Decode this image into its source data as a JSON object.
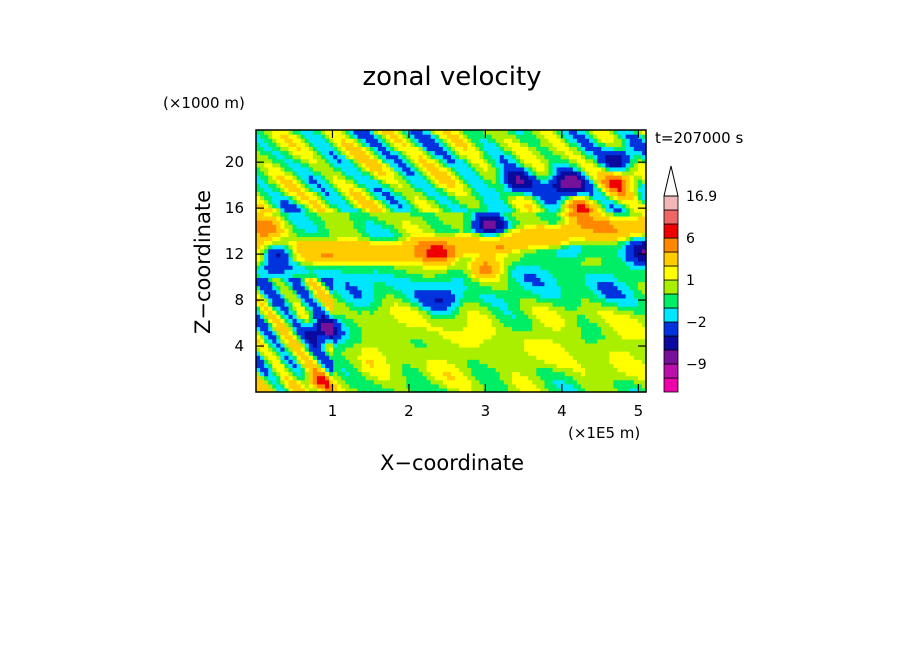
{
  "chart_data": {
    "type": "heatmap",
    "title": "zonal velocity",
    "xlabel": "X−coordinate",
    "ylabel": "Z−coordinate",
    "x_unit": "(×1E5 m)",
    "y_unit": "(×1000 m)",
    "time_label": "t=207000 s",
    "xlim": [
      0,
      5.1
    ],
    "ylim": [
      0,
      22.8
    ],
    "x_ticks": [
      1,
      2,
      3,
      4,
      5
    ],
    "y_ticks": [
      4,
      8,
      12,
      16,
      20
    ],
    "colorbar": {
      "levels": [
        -15,
        -12,
        -9,
        -6,
        -4,
        -2,
        -1,
        0,
        1,
        2,
        4,
        6,
        9,
        12,
        16.9
      ],
      "colors": [
        "#ee00aa",
        "#bb11aa",
        "#771199",
        "#0a0a9e",
        "#0033dd",
        "#00e6ff",
        "#00ee66",
        "#aaee00",
        "#ffff00",
        "#ffcc00",
        "#ff8800",
        "#ee0000",
        "#ee6666",
        "#f2b6b6"
      ],
      "tick_labels": [
        {
          "value": 16.9,
          "text": "16.9"
        },
        {
          "value": 6,
          "text": "6"
        },
        {
          "value": 1,
          "text": "1"
        },
        {
          "value": -2,
          "text": "−2"
        },
        {
          "value": -9,
          "text": "−9"
        }
      ],
      "extend_max": true
    },
    "field_features": [
      {
        "kind": "band",
        "name": "mid-level easterly jet",
        "x_start": 0,
        "x_end": 5.1,
        "z_start": 11.2,
        "z_end": 13.2,
        "z_end_at_xmax": 15.5,
        "value": 3.5
      },
      {
        "kind": "band",
        "name": "lower yellow layer",
        "x_start": 1.4,
        "x_end": 5.1,
        "z_start": 0.8,
        "z_end": 7.5,
        "value": 0.7
      },
      {
        "kind": "band",
        "name": "green layer",
        "x_start": 0,
        "x_end": 5.1,
        "z_start": 7.5,
        "z_end": 11.0,
        "value": -1.0
      },
      {
        "kind": "blob",
        "x": 0.28,
        "z": 12.0,
        "value": -7
      },
      {
        "kind": "blob",
        "x": 0.85,
        "z": 5.2,
        "value": -7
      },
      {
        "kind": "blob",
        "x": 3.05,
        "z": 14.3,
        "value": -7
      },
      {
        "kind": "blob",
        "x": 3.4,
        "z": 18.2,
        "value": -6
      },
      {
        "kind": "blob",
        "x": 4.05,
        "z": 18.0,
        "value": -8
      },
      {
        "kind": "blob",
        "x": 4.75,
        "z": 20.3,
        "value": -6
      },
      {
        "kind": "blob",
        "x": 5.08,
        "z": 12.2,
        "value": -6
      },
      {
        "kind": "blob",
        "x": 4.1,
        "z": 12.3,
        "value": -2.5
      },
      {
        "kind": "blob",
        "x": 2.45,
        "z": 8.2,
        "value": -2.5
      },
      {
        "kind": "blob",
        "x": 4.2,
        "z": 15.8,
        "value": 5
      },
      {
        "kind": "blob",
        "x": 4.75,
        "z": 18.3,
        "value": 6
      },
      {
        "kind": "blob",
        "x": 0.1,
        "z": 14.2,
        "value": 5
      },
      {
        "kind": "blob",
        "x": 2.4,
        "z": 11.8,
        "value": 5
      },
      {
        "kind": "blob",
        "x": 3.0,
        "z": 10.8,
        "value": 5
      },
      {
        "kind": "blob",
        "x": 0.8,
        "z": 0.8,
        "value": 5
      }
    ]
  }
}
